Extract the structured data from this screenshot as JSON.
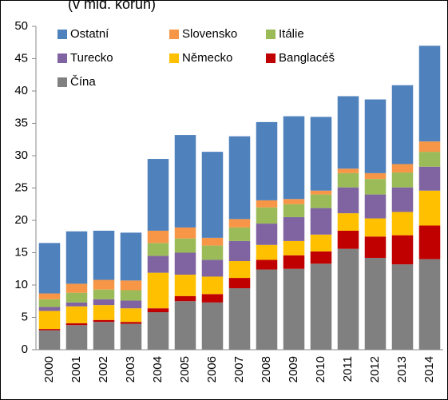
{
  "chart_data": {
    "type": "stacked_bar",
    "title": "(v mld. korun)",
    "categories": [
      "2000",
      "2001",
      "2002",
      "2003",
      "2004",
      "2005",
      "2006",
      "2007",
      "2008",
      "2009",
      "2010",
      "2011",
      "2012",
      "2013",
      "2014"
    ],
    "series": [
      {
        "name": "Čína",
        "color": "#808080",
        "values": [
          3.0,
          3.8,
          4.3,
          4.0,
          5.8,
          7.5,
          7.3,
          9.5,
          12.4,
          12.5,
          13.3,
          15.6,
          14.2,
          13.2,
          14.0
        ]
      },
      {
        "name": "Banglacéš",
        "color": "#c00000",
        "values": [
          0.2,
          0.3,
          0.3,
          0.3,
          0.6,
          0.8,
          1.3,
          1.6,
          1.5,
          2.1,
          1.9,
          2.8,
          3.3,
          4.5,
          5.2
        ]
      },
      {
        "name": "Německo",
        "color": "#ffc000",
        "values": [
          2.8,
          2.6,
          2.3,
          2.1,
          5.5,
          3.3,
          2.7,
          2.6,
          2.3,
          2.2,
          2.6,
          2.7,
          2.8,
          3.6,
          5.4
        ]
      },
      {
        "name": "Turecko",
        "color": "#8064a2",
        "values": [
          0.6,
          0.6,
          0.9,
          1.2,
          2.6,
          3.4,
          2.6,
          3.1,
          3.3,
          3.7,
          4.1,
          4.0,
          3.7,
          3.8,
          3.7
        ]
      },
      {
        "name": "Itálie",
        "color": "#9bbb59",
        "values": [
          1.2,
          1.5,
          1.5,
          1.6,
          2.0,
          2.2,
          2.2,
          2.1,
          2.5,
          2.0,
          2.1,
          2.2,
          2.4,
          2.3,
          2.3
        ]
      },
      {
        "name": "Slovensko",
        "color": "#f79646",
        "values": [
          0.9,
          1.4,
          1.5,
          1.5,
          1.9,
          1.7,
          1.2,
          1.3,
          1.1,
          0.8,
          0.6,
          0.7,
          0.9,
          1.3,
          1.6
        ]
      },
      {
        "name": "Ostatní",
        "color": "#4f81bd",
        "values": [
          7.8,
          8.1,
          7.6,
          7.4,
          11.1,
          14.3,
          13.3,
          12.8,
          12.1,
          12.8,
          11.4,
          11.2,
          11.4,
          12.2,
          14.8
        ]
      }
    ],
    "ylim": [
      0,
      50
    ],
    "yticks": [
      0,
      5,
      10,
      15,
      20,
      25,
      30,
      35,
      40,
      45,
      50
    ],
    "grid": false,
    "legend": "top-left"
  }
}
